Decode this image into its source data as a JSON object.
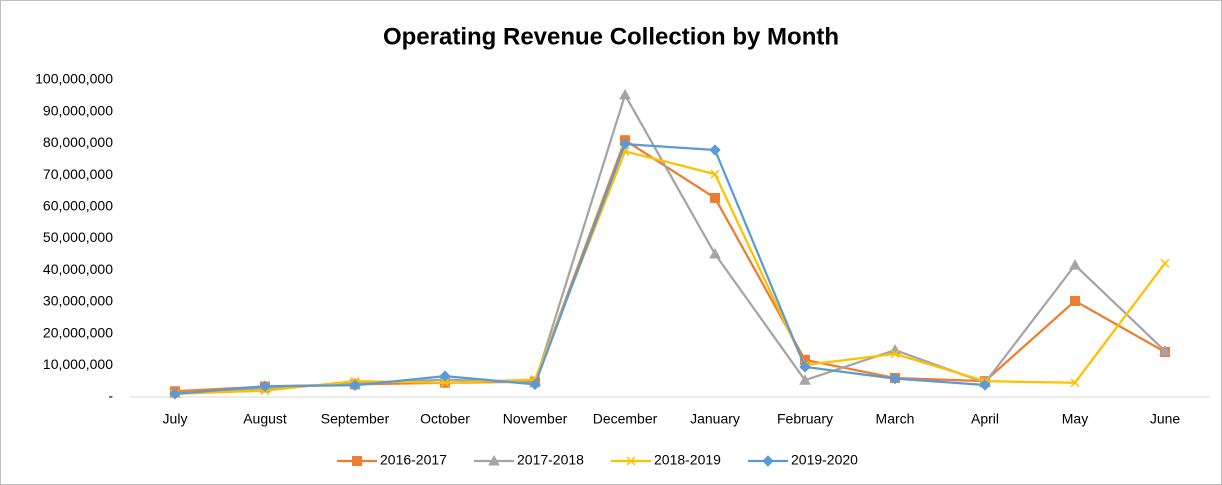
{
  "chart_data": {
    "type": "line",
    "title": "Operating Revenue Collection  by Month",
    "categories": [
      "July",
      "August",
      "September",
      "October",
      "November",
      "December",
      "January",
      "February",
      "March",
      "April",
      "May",
      "June"
    ],
    "ylim": [
      0,
      100000000
    ],
    "yticks": [
      {
        "value": 0,
        "label": "-"
      },
      {
        "value": 10000000,
        "label": "10,000,000"
      },
      {
        "value": 20000000,
        "label": "20,000,000"
      },
      {
        "value": 30000000,
        "label": "30,000,000"
      },
      {
        "value": 40000000,
        "label": "40,000,000"
      },
      {
        "value": 50000000,
        "label": "50,000,000"
      },
      {
        "value": 60000000,
        "label": "60,000,000"
      },
      {
        "value": 70000000,
        "label": "70,000,000"
      },
      {
        "value": 80000000,
        "label": "80,000,000"
      },
      {
        "value": 90000000,
        "label": "90,000,000"
      },
      {
        "value": 100000000,
        "label": "100,000,000"
      }
    ],
    "grid": false,
    "legend": "bottom",
    "series": [
      {
        "name": "2016-2017",
        "color": "#ED7D31",
        "marker": "square",
        "values": [
          1800000,
          3300000,
          4000000,
          4500000,
          4800000,
          81000000,
          62800000,
          11700000,
          6000000,
          5000000,
          30300000,
          14200000
        ]
      },
      {
        "name": "2017-2018",
        "color": "#A5A5A5",
        "marker": "triangle",
        "values": [
          1200000,
          2800000,
          4200000,
          5500000,
          4500000,
          95300000,
          45100000,
          5300000,
          14800000,
          4500000,
          41600000,
          14500000
        ]
      },
      {
        "name": "2018-2019",
        "color": "#FFC000",
        "marker": "x",
        "values": [
          1000000,
          2000000,
          5000000,
          4500000,
          5500000,
          77500000,
          70300000,
          10100000,
          13600000,
          5000000,
          4500000,
          42200000
        ]
      },
      {
        "name": "2019-2020",
        "color": "#5B9BD5",
        "marker": "diamond",
        "values": [
          1000000,
          3400000,
          3700000,
          6600000,
          4000000,
          79800000,
          77900000,
          9500000,
          5800000,
          3800000,
          null,
          null
        ]
      }
    ]
  }
}
